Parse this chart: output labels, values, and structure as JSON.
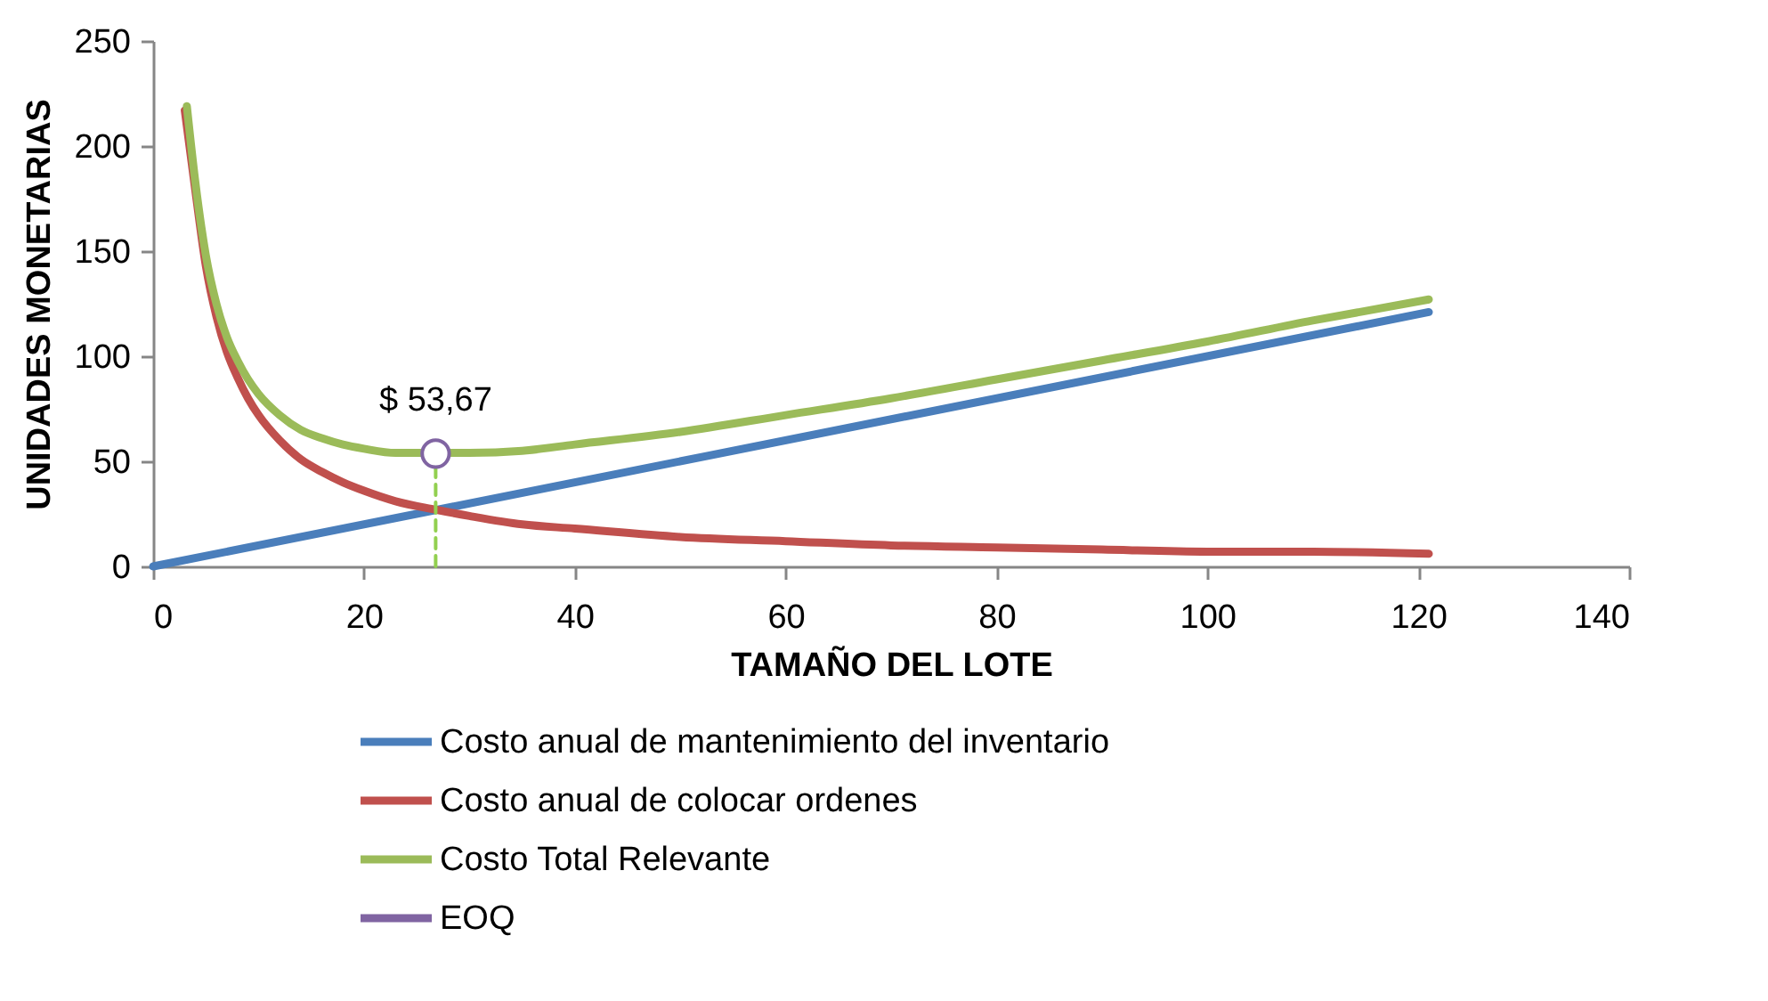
{
  "chart_data": {
    "type": "line",
    "xlabel": "TAMAÑO DEL LOTE",
    "ylabel": "UNIDADES MONETARIAS",
    "xlim": [
      0,
      140
    ],
    "xticks": [
      0,
      20,
      40,
      60,
      80,
      100,
      120,
      140
    ],
    "ylim": [
      0,
      250
    ],
    "yticks": [
      0,
      50,
      100,
      150,
      200,
      250
    ],
    "grid": false,
    "legend": "bottom",
    "series": [
      {
        "name": "Costo anual de mantenimiento del inventario",
        "color": "#4a7ebb",
        "x": [
          0,
          121
        ],
        "values": [
          0,
          121
        ]
      },
      {
        "name": "Costo anual de colocar ordenes",
        "color": "#c0504d",
        "x": [
          3,
          4,
          5,
          6,
          7,
          8,
          9,
          10,
          12,
          14,
          16,
          18,
          20,
          23,
          26.8,
          30,
          35,
          40,
          50,
          60,
          70,
          80,
          90,
          100,
          110,
          121
        ],
        "values": [
          217,
          179,
          143,
          119,
          102,
          90,
          80,
          72,
          60,
          51,
          45,
          40,
          36,
          31,
          27,
          24,
          20,
          18,
          14,
          12,
          10,
          9,
          8,
          7,
          7,
          6
        ]
      },
      {
        "name": "Costo Total Relevante",
        "color": "#9bbb59",
        "x": [
          3.2,
          4,
          5,
          6,
          7,
          8,
          9,
          10,
          12,
          14,
          16,
          18,
          20,
          23,
          26.8,
          30,
          35,
          40,
          50,
          60,
          70,
          80,
          90,
          100,
          110,
          121
        ],
        "values": [
          219,
          183,
          148,
          125,
          109,
          98,
          89,
          82,
          72,
          65,
          61,
          58,
          56,
          54,
          54,
          54,
          55,
          58,
          64,
          72,
          80,
          89,
          98,
          107,
          117,
          127
        ]
      },
      {
        "type": "line",
        "line_style": "dashed",
        "color": "#92d050",
        "x": [
          26.8,
          26.8
        ],
        "values": [
          0,
          53.67
        ]
      },
      {
        "name": "EOQ",
        "type": "scatter",
        "marker": "circle",
        "color": "#8064a2",
        "x": [
          26.8
        ],
        "values": [
          53.67
        ],
        "value_labels": [
          "$ 53,67"
        ]
      }
    ]
  }
}
